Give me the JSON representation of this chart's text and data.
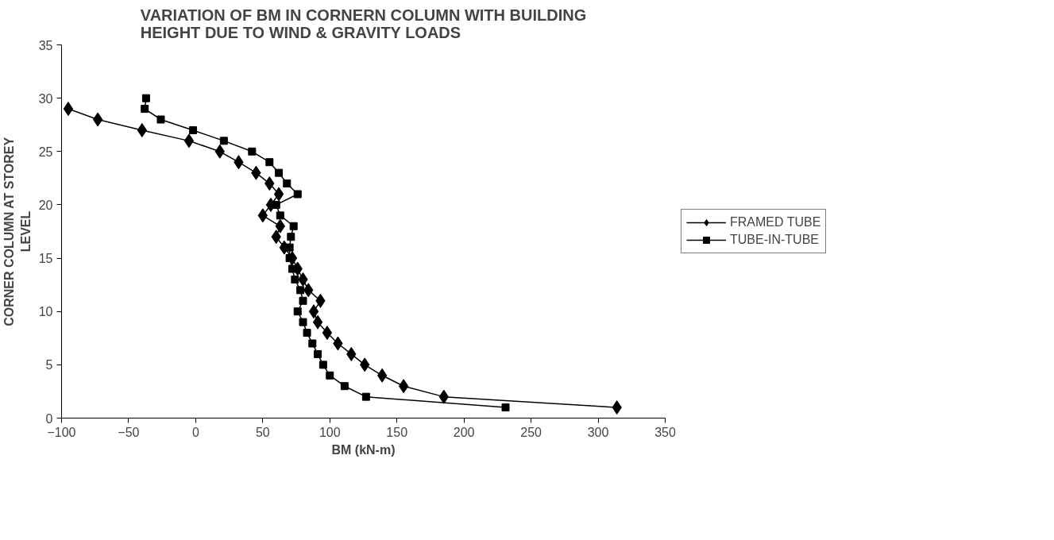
{
  "chart_data": {
    "type": "line",
    "title": "VARIATION OF BM IN CORNERN COLUMN WITH BUILDING\nHEIGHT DUE TO WIND & GRAVITY LOADS",
    "xlabel": "BM (kN-m)",
    "ylabel": "CORNER COLUMN AT STOREY\nLEVEL",
    "xlim": [
      -100,
      350
    ],
    "xticks": [
      -100,
      -50,
      0,
      50,
      100,
      150,
      200,
      250,
      300,
      350
    ],
    "ylim": [
      0,
      35
    ],
    "yticks": [
      0,
      5,
      10,
      15,
      20,
      25,
      30,
      35
    ],
    "grid": false,
    "legend": "right",
    "series": [
      {
        "name": "FRAMED TUBE",
        "color": "#000000",
        "marker": "diamond",
        "x": [
          314,
          185,
          155,
          139,
          126,
          116,
          106,
          98,
          91,
          88,
          93,
          84,
          80,
          76,
          72,
          66,
          60,
          63,
          50,
          56,
          62,
          55,
          45,
          32,
          18,
          -5,
          -40,
          -73,
          -95
        ],
        "values": [
          1,
          2,
          3,
          4,
          5,
          6,
          7,
          8,
          9,
          10,
          11,
          12,
          13,
          14,
          15,
          16,
          17,
          18,
          19,
          20,
          21,
          22,
          23,
          24,
          25,
          26,
          27,
          28,
          29
        ]
      },
      {
        "name": "TUBE-IN-TUBE",
        "color": "#000000",
        "marker": "square",
        "x": [
          231,
          127,
          111,
          100,
          95,
          91,
          87,
          83,
          80,
          76,
          80,
          78,
          74,
          72,
          70,
          70,
          71,
          73,
          63,
          60,
          76,
          68,
          62,
          55,
          42,
          21,
          -2,
          -26,
          -38,
          -37
        ],
        "values": [
          1,
          2,
          3,
          4,
          5,
          6,
          7,
          8,
          9,
          10,
          11,
          12,
          13,
          14,
          15,
          16,
          17,
          18,
          19,
          20,
          21,
          22,
          23,
          24,
          25,
          26,
          27,
          28,
          29,
          30
        ]
      }
    ]
  }
}
